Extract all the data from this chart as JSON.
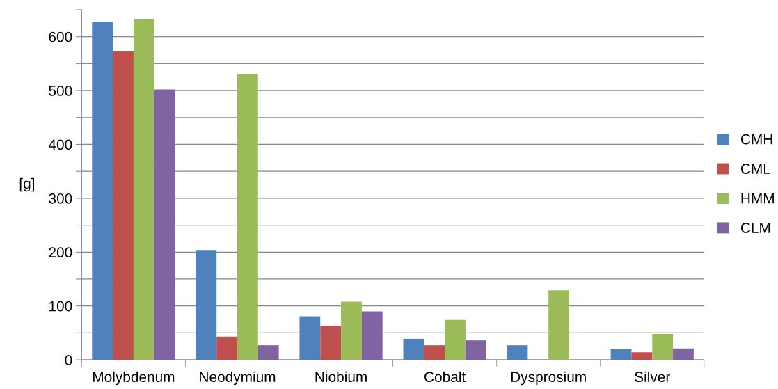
{
  "chart_data": {
    "type": "bar",
    "ylabel": "[g]",
    "categories": [
      "Molybdenum",
      "Neodymium",
      "Niobium",
      "Cobalt",
      "Dysprosium",
      "Silver"
    ],
    "series": [
      {
        "name": "CMH",
        "color": "#4f81bd",
        "values": [
          627,
          204,
          81,
          39,
          27,
          20
        ]
      },
      {
        "name": "CML",
        "color": "#c0504d",
        "values": [
          573,
          43,
          62,
          27,
          null,
          14
        ]
      },
      {
        "name": "HMM",
        "color": "#9bbb59",
        "values": [
          633,
          530,
          108,
          74,
          129,
          48
        ]
      },
      {
        "name": "CLM",
        "color": "#8064a2",
        "values": [
          502,
          27,
          90,
          36,
          null,
          21
        ]
      }
    ],
    "ylim": [
      0,
      650
    ],
    "yticks": [
      0,
      {
        "value": 50,
        "label": null
      },
      100,
      {
        "value": 150,
        "label": null
      },
      200,
      {
        "value": 250,
        "label": null
      },
      300,
      {
        "value": 350,
        "label": null
      },
      400,
      {
        "value": 450,
        "label": null
      },
      500,
      {
        "value": 550,
        "label": null
      },
      600,
      {
        "value": 650,
        "label": null
      }
    ],
    "grid": "y",
    "legend": "right"
  }
}
